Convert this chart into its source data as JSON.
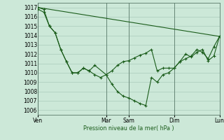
{
  "bg_color": "#cce8d8",
  "grid_color": "#aacabb",
  "line_color": "#1a5c1a",
  "marker_color": "#1a5c1a",
  "xlabel": "Pression niveau de la mer( hPa )",
  "ylim": [
    1005.5,
    1017.5
  ],
  "yticks": [
    1006,
    1007,
    1008,
    1009,
    1010,
    1011,
    1012,
    1013,
    1014,
    1015,
    1016,
    1017
  ],
  "xtick_labels": [
    "Ven",
    "",
    "",
    "",
    "",
    "",
    "",
    "",
    "",
    "",
    "",
    "",
    "Mar",
    "",
    "",
    "",
    "Sam",
    "",
    "",
    "",
    "",
    "",
    "",
    "",
    "Dim",
    "",
    "",
    "",
    "",
    "",
    "",
    "",
    "Lun"
  ],
  "xtick_positions": [
    0,
    12,
    16,
    24,
    32
  ],
  "xtick_names": [
    "Ven",
    "Mar",
    "Sam",
    "Dim",
    "Lun"
  ],
  "line1_x": [
    0,
    32
  ],
  "line1_y": [
    1017.0,
    1013.9
  ],
  "line2_x": [
    0,
    1,
    2,
    3,
    4,
    5,
    6,
    7,
    8,
    9,
    10,
    12,
    13,
    14,
    15,
    16,
    17,
    18,
    19,
    20,
    21,
    22,
    23,
    24,
    25,
    26,
    27,
    28,
    29,
    30,
    31,
    32
  ],
  "line2_y": [
    1016.8,
    1016.5,
    1015.0,
    1014.3,
    1012.5,
    1011.2,
    1010.0,
    1010.0,
    1010.5,
    1010.2,
    1010.8,
    1009.8,
    1010.2,
    1010.8,
    1011.2,
    1011.3,
    1011.6,
    1011.9,
    1012.1,
    1012.5,
    1010.2,
    1010.5,
    1010.5,
    1010.5,
    1011.2,
    1012.0,
    1011.7,
    1012.2,
    1012.5,
    1011.3,
    1011.8,
    1013.9
  ],
  "line3_x": [
    0,
    1,
    2,
    3,
    4,
    5,
    6,
    7,
    8,
    9,
    10,
    11,
    12,
    13,
    14,
    15,
    16,
    17,
    18,
    19,
    20,
    21,
    22,
    23,
    24,
    25,
    26,
    27,
    28,
    29,
    30,
    31,
    32
  ],
  "line3_y": [
    1017.0,
    1016.8,
    1015.0,
    1014.3,
    1012.5,
    1011.2,
    1010.0,
    1010.0,
    1010.5,
    1010.2,
    1009.8,
    1009.5,
    1009.8,
    1008.8,
    1008.0,
    1007.5,
    1007.3,
    1007.0,
    1006.7,
    1006.5,
    1009.5,
    1009.0,
    1009.8,
    1010.0,
    1010.5,
    1011.2,
    1011.5,
    1011.8,
    1012.5,
    1012.2,
    1011.5,
    1012.8,
    1013.9
  ]
}
